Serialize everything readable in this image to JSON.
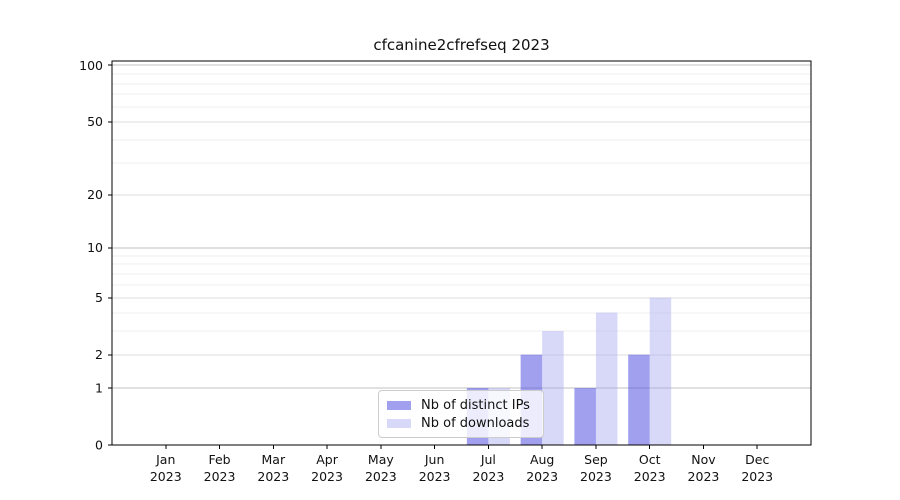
{
  "chart_data": {
    "type": "bar",
    "title": "cfcanine2cfrefseq 2023",
    "categories": [
      "Jan",
      "Feb",
      "Mar",
      "Apr",
      "May",
      "Jun",
      "Jul",
      "Aug",
      "Sep",
      "Oct",
      "Nov",
      "Dec"
    ],
    "x_tick_year": "2023",
    "series": [
      {
        "key": "distinct-ips",
        "name": "Nb of distinct IPs",
        "color": "#5252e1",
        "alpha": 0.55,
        "values": [
          0,
          0,
          0,
          0,
          0,
          0,
          1,
          2,
          1,
          2,
          0,
          0
        ]
      },
      {
        "key": "downloads",
        "name": "Nb of downloads",
        "color": "#a8a8f0",
        "alpha": 0.45,
        "values": [
          0,
          0,
          0,
          0,
          0,
          0,
          1,
          3,
          4,
          5,
          0,
          0
        ]
      }
    ],
    "scale": "log1p",
    "ylim": [
      0,
      105.5
    ],
    "y_ticks": [
      {
        "value": 0,
        "label": "0"
      },
      {
        "value": 1,
        "label": "1"
      },
      {
        "value": 2,
        "label": "2"
      },
      {
        "value": 5,
        "label": "5"
      },
      {
        "value": 10,
        "label": "10"
      },
      {
        "value": 20,
        "label": "20"
      },
      {
        "value": 50,
        "label": "50"
      },
      {
        "value": 100,
        "label": "100"
      }
    ],
    "y_minor_gridlines": [
      3,
      4,
      6,
      7,
      8,
      9,
      30,
      40,
      60,
      70,
      80,
      90
    ],
    "grid": "on",
    "legend_position": "lower-center",
    "colors": {
      "grid_decade": "#c0c0c0",
      "grid_major": "#dedede",
      "grid_minor": "#efefef",
      "axis": "#000000",
      "tick_label": "#111111",
      "legend_border": "#cccccc",
      "background": "#ffffff"
    }
  }
}
